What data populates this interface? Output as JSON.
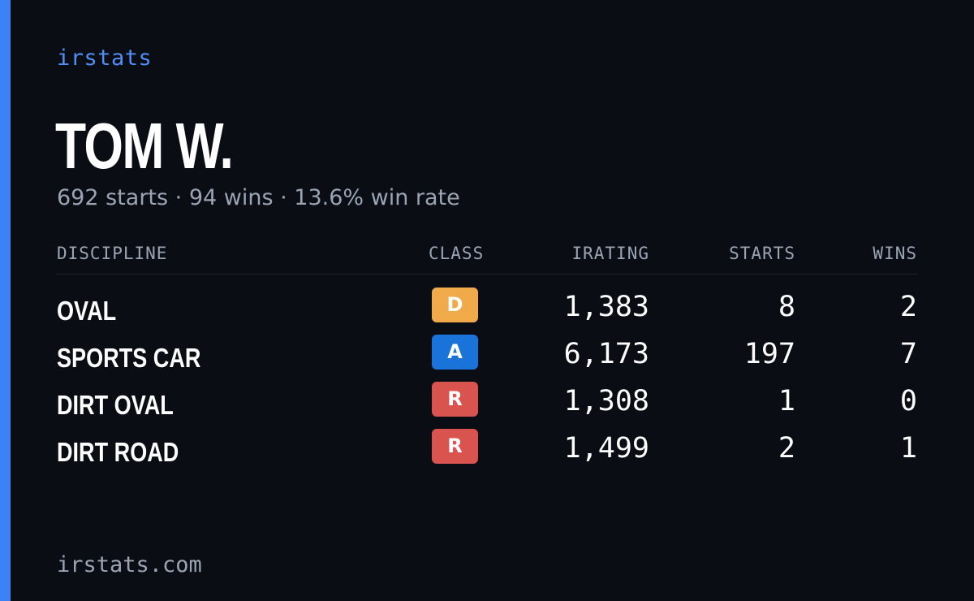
{
  "brand": "irstats",
  "driver": {
    "name": "TOM W.",
    "summary": "692 starts · 94 wins · 13.6% win rate"
  },
  "table": {
    "headers": {
      "discipline": "DISCIPLINE",
      "class": "CLASS",
      "irating": "IRATING",
      "starts": "STARTS",
      "wins": "WINS"
    },
    "rows": [
      {
        "discipline": "OVAL",
        "class": "D",
        "class_color": "#f0aa4a",
        "irating": "1,383",
        "starts": "8",
        "wins": "2"
      },
      {
        "discipline": "SPORTS CAR",
        "class": "A",
        "class_color": "#1a73d9",
        "irating": "6,173",
        "starts": "197",
        "wins": "7"
      },
      {
        "discipline": "DIRT OVAL",
        "class": "R",
        "class_color": "#d9534f",
        "irating": "1,308",
        "starts": "1",
        "wins": "0"
      },
      {
        "discipline": "DIRT ROAD",
        "class": "R",
        "class_color": "#d9534f",
        "irating": "1,499",
        "starts": "2",
        "wins": "1"
      }
    ]
  },
  "footer": "irstats.com",
  "colors": {
    "accent": "#3b82f6",
    "background": "#0b0d14"
  }
}
